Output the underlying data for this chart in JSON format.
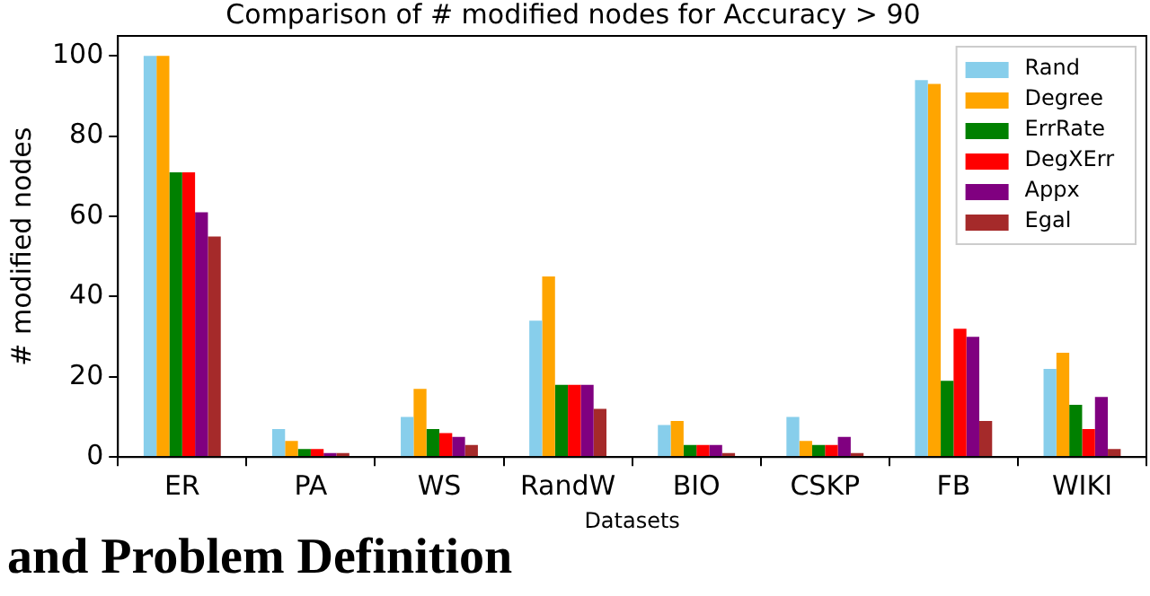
{
  "chart_data": {
    "type": "bar",
    "title": "Comparison of # modified nodes for Accuracy > 90",
    "xlabel": "Datasets",
    "ylabel": "# modified nodes",
    "categories": [
      "ER",
      "PA",
      "WS",
      "RandW",
      "BIO",
      "CSKP",
      "FB",
      "WIKI"
    ],
    "series": [
      {
        "name": "Rand",
        "color": "#87ceeb",
        "values": [
          100,
          7,
          10,
          34,
          8,
          10,
          94,
          22
        ]
      },
      {
        "name": "Degree",
        "color": "#ffa500",
        "values": [
          100,
          4,
          17,
          45,
          9,
          4,
          93,
          26
        ]
      },
      {
        "name": "ErrRate",
        "color": "#008000",
        "values": [
          71,
          2,
          7,
          18,
          3,
          3,
          19,
          13
        ]
      },
      {
        "name": "DegXErr",
        "color": "#ff0000",
        "values": [
          71,
          2,
          6,
          18,
          3,
          3,
          32,
          7
        ]
      },
      {
        "name": "Appx",
        "color": "#800080",
        "values": [
          61,
          1,
          5,
          18,
          3,
          5,
          30,
          15
        ]
      },
      {
        "name": "Egal",
        "color": "#a52a2a",
        "values": [
          55,
          1,
          3,
          12,
          1,
          1,
          9,
          2
        ]
      }
    ],
    "ylim": [
      0,
      105
    ],
    "yticks": [
      0,
      20,
      40,
      60,
      80,
      100
    ],
    "grid": false,
    "legend": "top right",
    "annotations": [
      "and Problem Definition"
    ]
  }
}
